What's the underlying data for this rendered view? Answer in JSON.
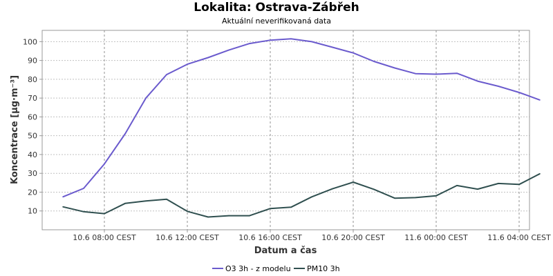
{
  "title": "Lokalita: Ostrava-Zábřeh",
  "subtitle": "Aktuální neverifikovaná data",
  "colors": {
    "o3": "#6a5acd",
    "pm10": "#2f4f4f",
    "grid": "#c0c0c0",
    "axis": "#999999"
  },
  "chart_data": {
    "type": "line",
    "title": "Lokalita: Ostrava-Zábřeh",
    "subtitle": "Aktuální neverifikovaná data",
    "xlabel": "Datum a čas",
    "ylabel": "Koncentrace [µg·m⁻³]",
    "ylim": [
      0,
      106
    ],
    "yticks": [
      10,
      20,
      30,
      40,
      50,
      60,
      70,
      80,
      90,
      100
    ],
    "xlim": [
      "2023-06-10T05:00",
      "2023-06-11T04:30"
    ],
    "xticks": [
      {
        "x": "2023-06-10T08:00",
        "label": "10.6 08:00 CEST"
      },
      {
        "x": "2023-06-10T12:00",
        "label": "10.6 12:00 CEST"
      },
      {
        "x": "2023-06-10T16:00",
        "label": "10.6 16:00 CEST"
      },
      {
        "x": "2023-06-10T20:00",
        "label": "10.6 20:00 CEST"
      },
      {
        "x": "2023-06-11T00:00",
        "label": "11.6 00:00 CEST"
      },
      {
        "x": "2023-06-11T04:00",
        "label": "11.6 04:00 CEST"
      }
    ],
    "grid": true,
    "legend": "bottom",
    "series": [
      {
        "name": "O3 3h - z modelu",
        "color": "#6a5acd",
        "points": [
          {
            "x": "2023-06-10T06:00",
            "y": 17.5
          },
          {
            "x": "2023-06-10T07:00",
            "y": 22
          },
          {
            "x": "2023-06-10T08:00",
            "y": 35
          },
          {
            "x": "2023-06-10T09:00",
            "y": 51
          },
          {
            "x": "2023-06-10T10:00",
            "y": 70
          },
          {
            "x": "2023-06-10T11:00",
            "y": 82.5
          },
          {
            "x": "2023-06-10T12:00",
            "y": 88
          },
          {
            "x": "2023-06-10T13:00",
            "y": 91.5
          },
          {
            "x": "2023-06-10T14:00",
            "y": 95.5
          },
          {
            "x": "2023-06-10T15:00",
            "y": 99
          },
          {
            "x": "2023-06-10T16:00",
            "y": 100.8
          },
          {
            "x": "2023-06-10T17:00",
            "y": 101.5
          },
          {
            "x": "2023-06-10T18:00",
            "y": 100
          },
          {
            "x": "2023-06-10T19:00",
            "y": 97
          },
          {
            "x": "2023-06-10T20:00",
            "y": 94
          },
          {
            "x": "2023-06-10T21:00",
            "y": 89.5
          },
          {
            "x": "2023-06-10T22:00",
            "y": 86
          },
          {
            "x": "2023-06-10T23:00",
            "y": 83
          },
          {
            "x": "2023-06-11T00:00",
            "y": 82.7
          },
          {
            "x": "2023-06-11T01:00",
            "y": 83.2
          },
          {
            "x": "2023-06-11T02:00",
            "y": 79
          },
          {
            "x": "2023-06-11T03:00",
            "y": 76.3
          },
          {
            "x": "2023-06-11T04:00",
            "y": 73
          },
          {
            "x": "2023-06-11T05:00",
            "y": 69
          }
        ]
      },
      {
        "name": "PM10 3h",
        "color": "#2f4f4f",
        "points": [
          {
            "x": "2023-06-10T06:00",
            "y": 12.2
          },
          {
            "x": "2023-06-10T07:00",
            "y": 9.6
          },
          {
            "x": "2023-06-10T08:00",
            "y": 8.6
          },
          {
            "x": "2023-06-10T09:00",
            "y": 14
          },
          {
            "x": "2023-06-10T10:00",
            "y": 15.3
          },
          {
            "x": "2023-06-10T11:00",
            "y": 16.2
          },
          {
            "x": "2023-06-10T12:00",
            "y": 9.8
          },
          {
            "x": "2023-06-10T13:00",
            "y": 6.8
          },
          {
            "x": "2023-06-10T14:00",
            "y": 7.5
          },
          {
            "x": "2023-06-10T15:00",
            "y": 7.5
          },
          {
            "x": "2023-06-10T16:00",
            "y": 11.3
          },
          {
            "x": "2023-06-10T17:00",
            "y": 12
          },
          {
            "x": "2023-06-10T18:00",
            "y": 17.5
          },
          {
            "x": "2023-06-10T19:00",
            "y": 21.8
          },
          {
            "x": "2023-06-10T20:00",
            "y": 25.3
          },
          {
            "x": "2023-06-10T21:00",
            "y": 21.5
          },
          {
            "x": "2023-06-10T22:00",
            "y": 16.8
          },
          {
            "x": "2023-06-10T23:00",
            "y": 17.1
          },
          {
            "x": "2023-06-11T00:00",
            "y": 18.1
          },
          {
            "x": "2023-06-11T01:00",
            "y": 23.5
          },
          {
            "x": "2023-06-11T02:00",
            "y": 21.6
          },
          {
            "x": "2023-06-11T03:00",
            "y": 24.6
          },
          {
            "x": "2023-06-11T04:00",
            "y": 24.1
          },
          {
            "x": "2023-06-11T05:00",
            "y": 29.8
          }
        ]
      }
    ]
  }
}
